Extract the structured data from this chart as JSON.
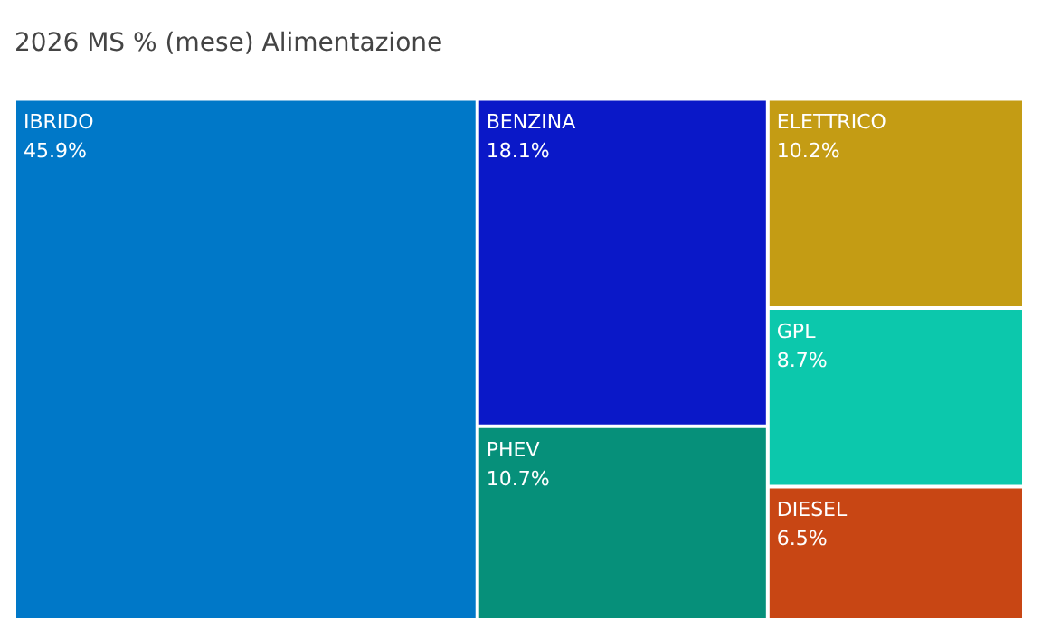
{
  "chart_data": {
    "type": "other",
    "title": "2026 MS % (mese) Alimentazione",
    "categories": [
      "IBRIDO",
      "BENZINA",
      "PHEV",
      "ELETTRICO",
      "GPL",
      "DIESEL"
    ],
    "values": [
      45.9,
      18.1,
      10.7,
      10.2,
      8.7,
      6.5
    ],
    "value_labels": [
      "45.9%",
      "18.1%",
      "10.7%",
      "10.2%",
      "8.7%",
      "6.5%"
    ],
    "colors": [
      "#0078c8",
      "#0a18c8",
      "#06907a",
      "#c49c14",
      "#0cc8ac",
      "#c84614"
    ],
    "legend": false
  }
}
